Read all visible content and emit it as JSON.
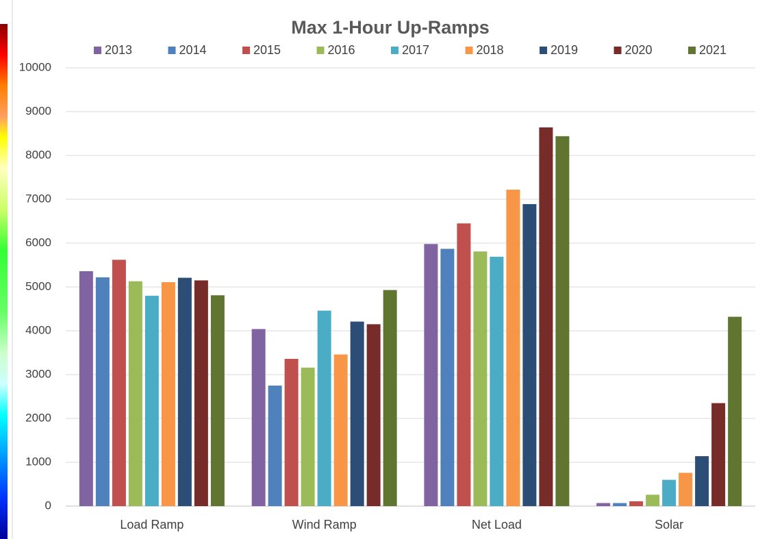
{
  "chart_data": {
    "type": "bar",
    "title": "Max 1-Hour Up-Ramps",
    "categories": [
      "Load Ramp",
      "Wind Ramp",
      "Net Load",
      "Solar"
    ],
    "series": [
      {
        "name": "2013",
        "color": "#8064a2",
        "values": [
          5360,
          4040,
          5980,
          70
        ]
      },
      {
        "name": "2014",
        "color": "#4f81bd",
        "values": [
          5220,
          2750,
          5870,
          70
        ]
      },
      {
        "name": "2015",
        "color": "#c0504d",
        "values": [
          5620,
          3360,
          6450,
          110
        ]
      },
      {
        "name": "2016",
        "color": "#9bbb59",
        "values": [
          5130,
          3160,
          5810,
          260
        ]
      },
      {
        "name": "2017",
        "color": "#4bacc6",
        "values": [
          4800,
          4460,
          5690,
          600
        ]
      },
      {
        "name": "2018",
        "color": "#f79646",
        "values": [
          5110,
          3460,
          7220,
          760
        ]
      },
      {
        "name": "2019",
        "color": "#2c4d75",
        "values": [
          5210,
          4210,
          6890,
          1140
        ]
      },
      {
        "name": "2020",
        "color": "#772c2a",
        "values": [
          5150,
          4150,
          8640,
          2350
        ]
      },
      {
        "name": "2021",
        "color": "#5f7530",
        "values": [
          4810,
          4930,
          8440,
          4320
        ]
      }
    ],
    "ylim": [
      0,
      10000
    ],
    "yticks": [
      0,
      1000,
      2000,
      3000,
      4000,
      5000,
      6000,
      7000,
      8000,
      9000,
      10000
    ],
    "grid": true,
    "legend": "top"
  }
}
